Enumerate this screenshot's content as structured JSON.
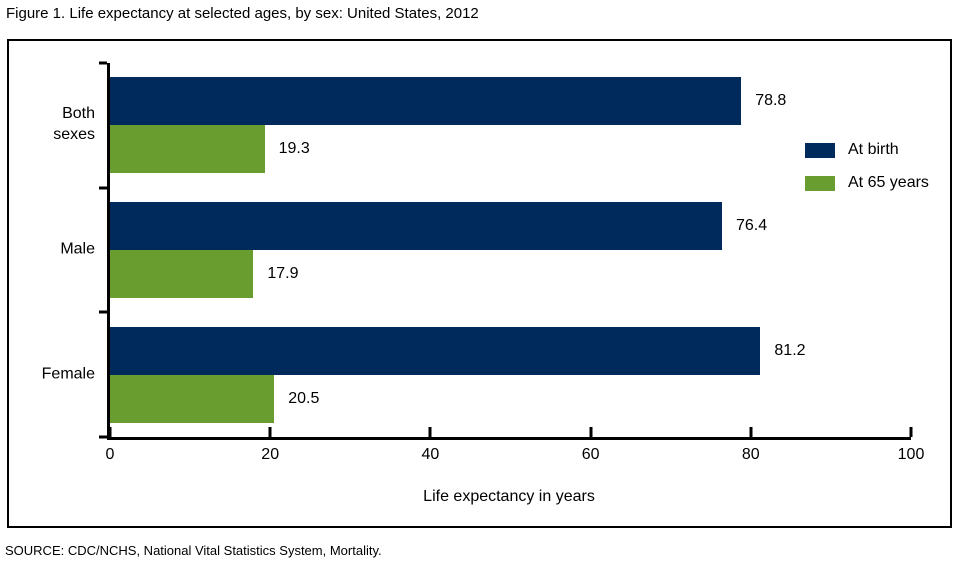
{
  "figure": {
    "title": "Figure 1. Life expectancy at selected ages, by sex: United States, 2012",
    "source": "SOURCE: CDC/NCHS, National Vital Statistics System, Mortality."
  },
  "colors": {
    "at_birth": "#002a5c",
    "at_65_years": "#6a9d2f",
    "axis": "#000000",
    "background": "#ffffff"
  },
  "chart_data": {
    "type": "bar",
    "orientation": "horizontal",
    "title": "Figure 1. Life expectancy at selected ages, by sex: United States, 2012",
    "categories": [
      "Both sexes",
      "Male",
      "Female"
    ],
    "series": [
      {
        "name": "At birth",
        "color": "#002a5c",
        "values": [
          78.8,
          76.4,
          81.2
        ]
      },
      {
        "name": "At 65 years",
        "color": "#6a9d2f",
        "values": [
          19.3,
          17.9,
          20.5
        ]
      }
    ],
    "xlabel": "Life expectancy in years",
    "ylabel": "",
    "xlim": [
      0,
      100
    ],
    "xticks": [
      0,
      20,
      40,
      60,
      80,
      100
    ],
    "grid": false,
    "legend_position": "right-inside",
    "value_labels": true,
    "value_label_decimals": 1
  }
}
